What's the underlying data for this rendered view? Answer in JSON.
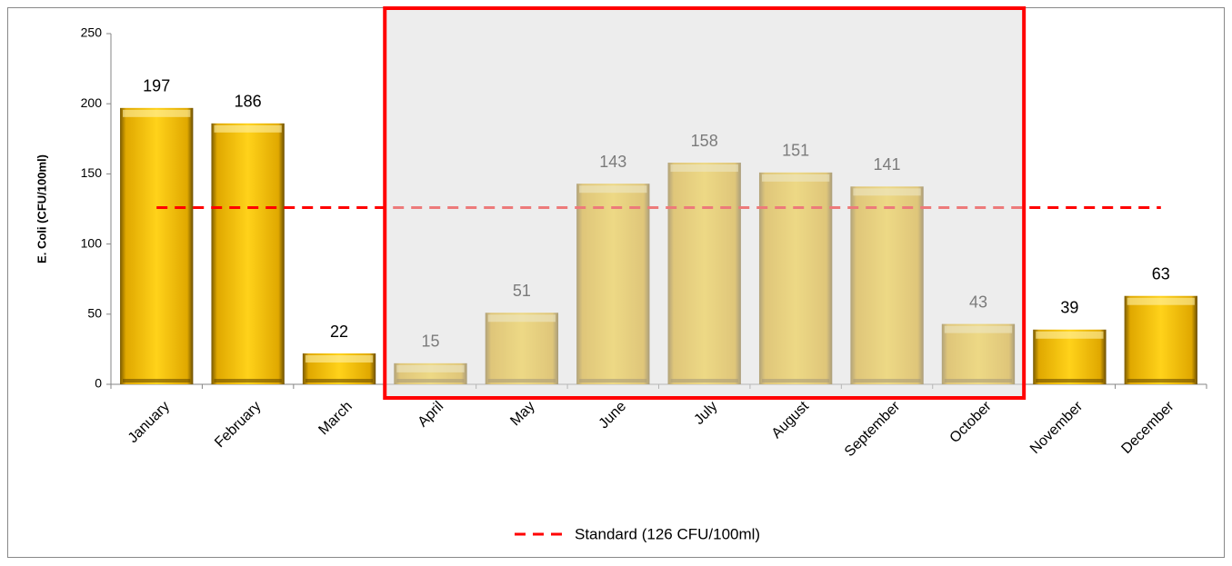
{
  "chart_data": {
    "type": "bar",
    "y_label": "E. Coli (CFU/100ml)",
    "categories": [
      "January",
      "February",
      "March",
      "April",
      "May",
      "June",
      "July",
      "August",
      "September",
      "October",
      "November",
      "December"
    ],
    "values": [
      197,
      186,
      22,
      15,
      51,
      143,
      158,
      151,
      141,
      43,
      39,
      63
    ],
    "color": "#ffc000",
    "ylim": [
      0,
      250
    ],
    "yticks": [
      0,
      50,
      100,
      150,
      200,
      250
    ],
    "reference_line": {
      "name": "Standard (126 CFU/100ml)",
      "value": 126,
      "color": "#ff0000"
    },
    "highlight": {
      "start": 3,
      "end": 9,
      "color": "#ff0000"
    },
    "legend": "bottom"
  }
}
